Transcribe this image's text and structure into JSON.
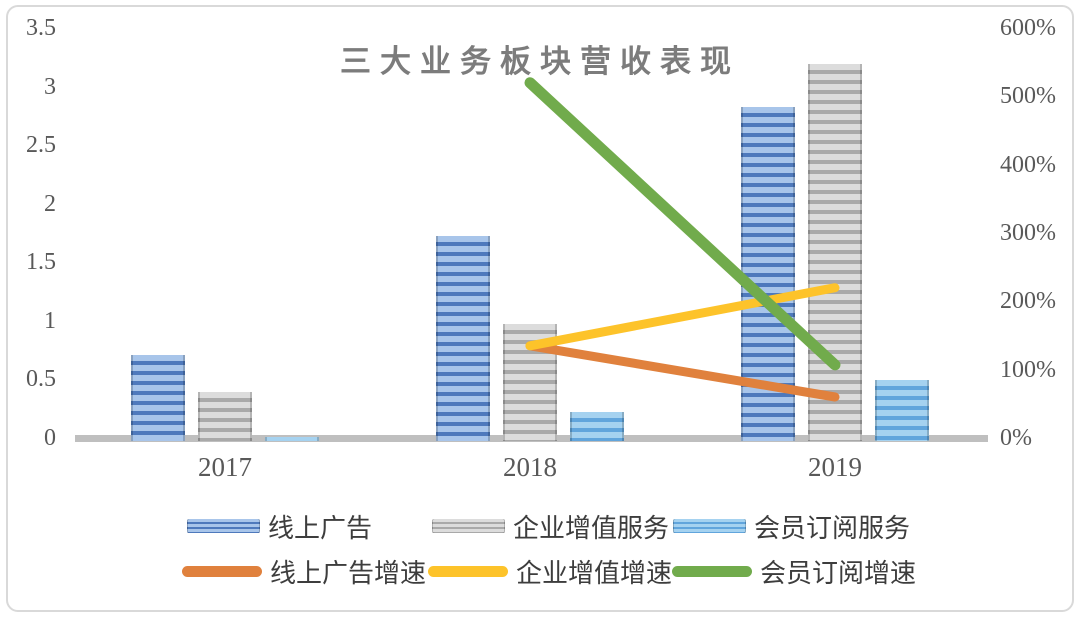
{
  "chart_data": {
    "type": "combo-bar-line",
    "title": "三大业务板块营收表现",
    "categories": [
      "2017",
      "2018",
      "2019"
    ],
    "left_axis": {
      "min": 0,
      "max": 3.5,
      "step": 0.5,
      "ticks": [
        "3.5",
        "3",
        "2.5",
        "2",
        "1.5",
        "1",
        "0.5",
        "0"
      ]
    },
    "right_axis": {
      "min": 0,
      "max": 600,
      "step": 100,
      "unit": "%",
      "ticks": [
        "600%",
        "500%",
        "400%",
        "300%",
        "200%",
        "100%",
        "0%"
      ]
    },
    "grid": "off",
    "legend_position": "bottom",
    "bar_series": [
      {
        "name": "线上广告",
        "color_dark": "#4e79bc",
        "color_light": "#a8c5ea",
        "values": [
          0.73,
          1.75,
          2.85
        ]
      },
      {
        "name": "企业增值服务",
        "color_dark": "#a9a9a9",
        "color_light": "#dcdcdc",
        "values": [
          0.42,
          1.0,
          3.22
        ]
      },
      {
        "name": "会员订阅服务",
        "color_dark": "#61a5dc",
        "color_light": "#a5d2f0",
        "values": [
          0.03,
          0.25,
          0.52
        ]
      }
    ],
    "line_series": [
      {
        "name": "线上广告增速",
        "color": "#e0813d",
        "points": [
          {
            "category": "2018",
            "value": 135
          },
          {
            "category": "2019",
            "value": 60
          }
        ]
      },
      {
        "name": "企业增值增速",
        "color": "#fdc32a",
        "points": [
          {
            "category": "2018",
            "value": 135
          },
          {
            "category": "2019",
            "value": 220
          }
        ]
      },
      {
        "name": "会员订阅增速",
        "color": "#71ab4c",
        "points": [
          {
            "category": "2018",
            "value": 520
          },
          {
            "category": "2019",
            "value": 107
          }
        ]
      }
    ]
  }
}
